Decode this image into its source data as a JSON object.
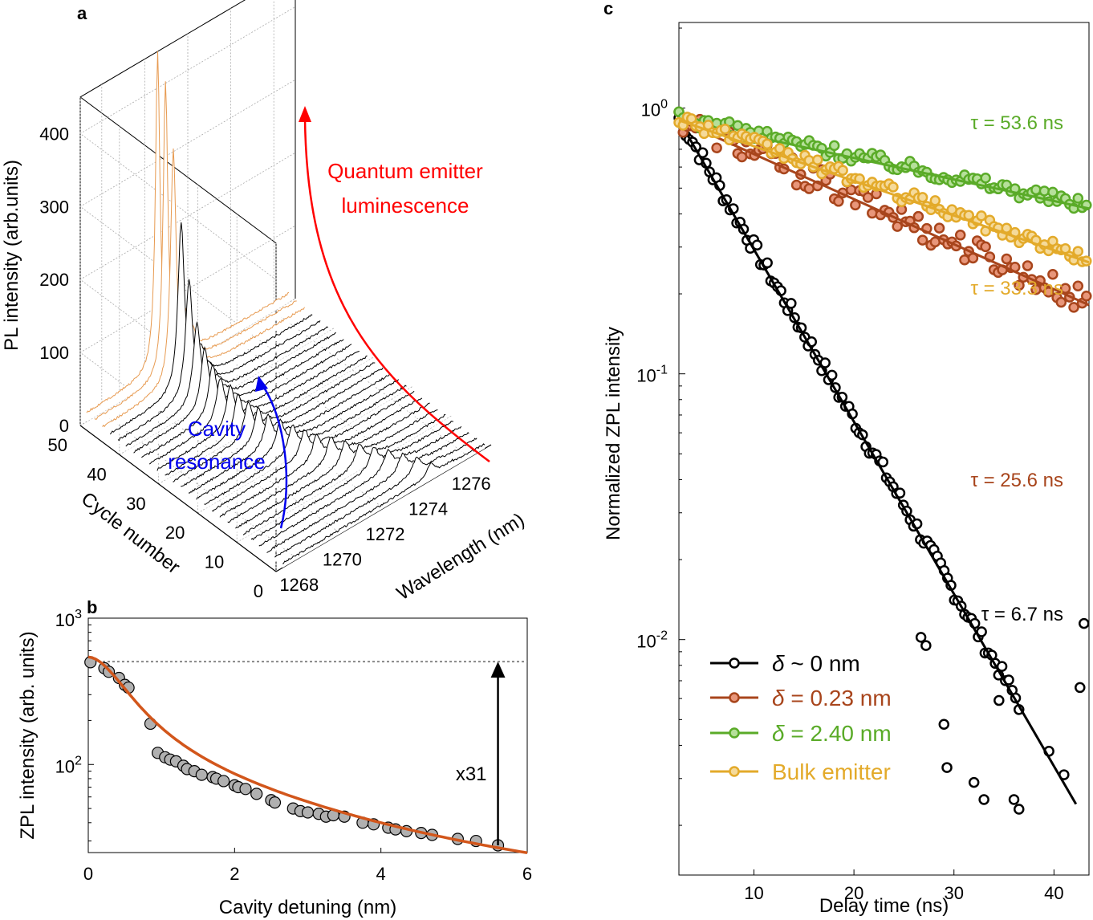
{
  "colors": {
    "black": "#000000",
    "red_annot": "#ff0000",
    "blue_annot": "#0000ee",
    "orange_fit": "#d2561b",
    "rust": "#a8451c",
    "green": "#5aab28",
    "gold": "#e3aa2a",
    "marker_gray": "#b0b0b0",
    "peak_orange": "#e79a50"
  },
  "chart_data": [
    {
      "panel": "a",
      "type": "waterfall",
      "panel_label": "a",
      "zlabel": "PL intensity (arb.units)",
      "ylabel": "Cycle number",
      "xlabel": "Wavelength (nm)",
      "z_ticks": [
        "0",
        "100",
        "200",
        "300",
        "400"
      ],
      "z_tick_values": [
        0,
        100,
        200,
        300,
        400
      ],
      "cycle_ticks": [
        "0",
        "10",
        "20",
        "30",
        "40",
        "50"
      ],
      "cycle_tick_values": [
        0,
        10,
        20,
        30,
        40,
        50
      ],
      "wavelength_ticks": [
        "1268",
        "1270",
        "1272",
        "1274",
        "1276"
      ],
      "wavelength_tick_values": [
        1268,
        1270,
        1272,
        1274,
        1276
      ],
      "zlim": [
        0,
        450
      ],
      "xlim": [
        1267,
        1277
      ],
      "num_traces": 26,
      "annotations": {
        "emitter": "Quantum emitter luminescence",
        "emitter_line1": "Quantum emitter",
        "emitter_line2": "luminescence",
        "cavity_line1": "Cavity",
        "cavity_line2": "resonance"
      },
      "peak_series": [
        {
          "cycle": 0,
          "wavelength": 1274.2,
          "intensity": 18,
          "background": 6
        },
        {
          "cycle": 2,
          "wavelength": 1273.9,
          "intensity": 22,
          "background": 6
        },
        {
          "cycle": 4,
          "wavelength": 1273.6,
          "intensity": 24,
          "background": 6
        },
        {
          "cycle": 6,
          "wavelength": 1273.3,
          "intensity": 27,
          "background": 6
        },
        {
          "cycle": 8,
          "wavelength": 1273.0,
          "intensity": 28,
          "background": 6
        },
        {
          "cycle": 10,
          "wavelength": 1272.7,
          "intensity": 30,
          "background": 6
        },
        {
          "cycle": 12,
          "wavelength": 1272.4,
          "intensity": 31,
          "background": 6
        },
        {
          "cycle": 14,
          "wavelength": 1272.1,
          "intensity": 33,
          "background": 6
        },
        {
          "cycle": 16,
          "wavelength": 1271.8,
          "intensity": 34,
          "background": 6
        },
        {
          "cycle": 18,
          "wavelength": 1271.6,
          "intensity": 36,
          "background": 6
        },
        {
          "cycle": 20,
          "wavelength": 1271.4,
          "intensity": 38,
          "background": 6
        },
        {
          "cycle": 22,
          "wavelength": 1271.2,
          "intensity": 40,
          "background": 6
        },
        {
          "cycle": 24,
          "wavelength": 1271.0,
          "intensity": 42,
          "background": 6
        },
        {
          "cycle": 26,
          "wavelength": 1270.9,
          "intensity": 45,
          "background": 6
        },
        {
          "cycle": 28,
          "wavelength": 1270.8,
          "intensity": 48,
          "background": 6
        },
        {
          "cycle": 30,
          "wavelength": 1270.7,
          "intensity": 52,
          "background": 6
        },
        {
          "cycle": 32,
          "wavelength": 1270.7,
          "intensity": 56,
          "background": 6
        },
        {
          "cycle": 34,
          "wavelength": 1270.6,
          "intensity": 60,
          "background": 6
        },
        {
          "cycle": 36,
          "wavelength": 1270.6,
          "intensity": 70,
          "background": 6
        },
        {
          "cycle": 38,
          "wavelength": 1270.6,
          "intensity": 85,
          "background": 6
        },
        {
          "cycle": 40,
          "wavelength": 1270.6,
          "intensity": 110,
          "background": 6
        },
        {
          "cycle": 42,
          "wavelength": 1270.6,
          "intensity": 160,
          "background": 6
        },
        {
          "cycle": 44,
          "wavelength": 1270.6,
          "intensity": 230,
          "background": 7
        },
        {
          "cycle": 46,
          "wavelength": 1270.6,
          "intensity": 320,
          "background": 8
        },
        {
          "cycle": 48,
          "wavelength": 1270.6,
          "intensity": 400,
          "background": 10
        },
        {
          "cycle": 50,
          "wavelength": 1270.6,
          "intensity": 430,
          "background": 12
        }
      ]
    },
    {
      "panel": "b",
      "type": "scatter",
      "panel_label": "b",
      "xlabel": "Cavity detuning (nm)",
      "ylabel": "ZPL intensity (arb. units)",
      "xlim": [
        0,
        6
      ],
      "ylim": [
        25,
        1000
      ],
      "yscale": "log",
      "x_ticks": [
        "0",
        "2",
        "4",
        "6"
      ],
      "x_tick_values": [
        0,
        2,
        4,
        6
      ],
      "y_ticks": [
        {
          "base": "10",
          "exp": "2",
          "value": 100
        },
        {
          "base": "10",
          "exp": "3",
          "value": 1000
        }
      ],
      "reference_level": 505,
      "enhancement_label": "x31",
      "arrow_at": 5.6,
      "points": [
        [
          0.03,
          500
        ],
        [
          0.22,
          455
        ],
        [
          0.28,
          430
        ],
        [
          0.42,
          390
        ],
        [
          0.5,
          350
        ],
        [
          0.55,
          335
        ],
        [
          0.85,
          190
        ],
        [
          0.95,
          120
        ],
        [
          1.05,
          112
        ],
        [
          1.12,
          108
        ],
        [
          1.2,
          105
        ],
        [
          1.3,
          98
        ],
        [
          1.35,
          93
        ],
        [
          1.45,
          90
        ],
        [
          1.55,
          85
        ],
        [
          1.7,
          82
        ],
        [
          1.75,
          80
        ],
        [
          1.85,
          77
        ],
        [
          2.0,
          72
        ],
        [
          2.05,
          70
        ],
        [
          2.15,
          68
        ],
        [
          2.3,
          63
        ],
        [
          2.5,
          57
        ],
        [
          2.55,
          55
        ],
        [
          2.8,
          50
        ],
        [
          2.9,
          48
        ],
        [
          3.0,
          47
        ],
        [
          3.15,
          46
        ],
        [
          3.25,
          44
        ],
        [
          3.35,
          45
        ],
        [
          3.5,
          44
        ],
        [
          3.75,
          40
        ],
        [
          3.9,
          39
        ],
        [
          4.1,
          37
        ],
        [
          4.2,
          36
        ],
        [
          4.35,
          35
        ],
        [
          4.55,
          34
        ],
        [
          4.7,
          33
        ],
        [
          5.05,
          31
        ],
        [
          5.3,
          30
        ],
        [
          5.6,
          28
        ]
      ],
      "fit": {
        "model": "Lorentzian + background",
        "peak_amplitude": 430,
        "hwhm": 0.55,
        "background_level": 13,
        "background_decay": 0.15
      }
    },
    {
      "panel": "c",
      "type": "scatter",
      "panel_label": "c",
      "xlabel": "Delay time (ns)",
      "ylabel": "Normalized ZPL intensity",
      "xlim": [
        2.5,
        43.5
      ],
      "ylim": [
        0.0013,
        2.1
      ],
      "yscale": "log",
      "x_ticks": [
        "10",
        "20",
        "30",
        "40"
      ],
      "x_tick_values": [
        10,
        20,
        30,
        40
      ],
      "y_ticks": [
        {
          "base": "10",
          "exp": "0",
          "value": 1
        },
        {
          "base": "10",
          "exp": "-1",
          "value": 0.1
        },
        {
          "base": "10",
          "exp": "-2",
          "value": 0.01
        }
      ],
      "legend": [
        "δ ~ 0 nm",
        "δ = 0.23 nm",
        "δ = 2.40 nm",
        "Bulk emitter"
      ],
      "legend_position": "bottom-left",
      "series": [
        {
          "name": "δ ~ 0 nm",
          "label_symbol": "δ",
          "label_rest": " ~ 0 nm",
          "tau_label": "τ = 6.7 ns",
          "tau_ns": 6.7,
          "color_key": "black",
          "marker_fill": "#ffffff",
          "marker_stroke": "#000000",
          "noise": 0.07,
          "fit_x_max": 42.2,
          "t_start": 2.5,
          "t_end": 36.7,
          "step": 0.34,
          "extra_points": [
            [
              26.7,
              0.0102
            ],
            [
              27.2,
              0.0095
            ],
            [
              29.0,
              0.0048
            ],
            [
              29.3,
              0.0033
            ],
            [
              32.0,
              0.0029
            ],
            [
              33.0,
              0.0025
            ],
            [
              34.5,
              0.0059
            ],
            [
              36.0,
              0.0025
            ],
            [
              36.5,
              0.0023
            ],
            [
              39.5,
              0.0038
            ],
            [
              41.0,
              0.0031
            ],
            [
              42.6,
              0.0066
            ],
            [
              43.0,
              0.0115
            ]
          ]
        },
        {
          "name": "δ = 0.23 nm",
          "label_symbol": "δ",
          "label_rest": " = 0.23 nm",
          "tau_label": "τ = 25.6 ns",
          "tau_ns": 25.6,
          "color_key": "rust",
          "marker_fill": "#e8967a",
          "marker_stroke": "#a8451c",
          "noise": 0.12,
          "fit_x_max": 43.5,
          "t_start": 2.5,
          "t_end": 43.3,
          "step": 0.42
        },
        {
          "name": "δ = 2.40 nm",
          "label_symbol": "δ",
          "label_rest": " = 2.40 nm",
          "tau_label": "τ = 53.6 ns",
          "tau_ns": 53.6,
          "color_key": "green",
          "marker_fill": "#b6e09a",
          "marker_stroke": "#5aab28",
          "noise": 0.06,
          "fit_x_max": 43.5,
          "t_start": 2.5,
          "t_end": 43.3,
          "step": 0.42
        },
        {
          "name": "Bulk emitter",
          "label_symbol": "",
          "label_rest": "Bulk emitter",
          "tau_label": "τ = 33.3 ns",
          "tau_ns": 33.3,
          "color_key": "gold",
          "marker_fill": "#f5da9a",
          "marker_stroke": "#e3aa2a",
          "noise": 0.06,
          "fit_x_max": 43.5,
          "t_start": 2.5,
          "t_end": 43.3,
          "step": 0.42
        }
      ]
    }
  ]
}
